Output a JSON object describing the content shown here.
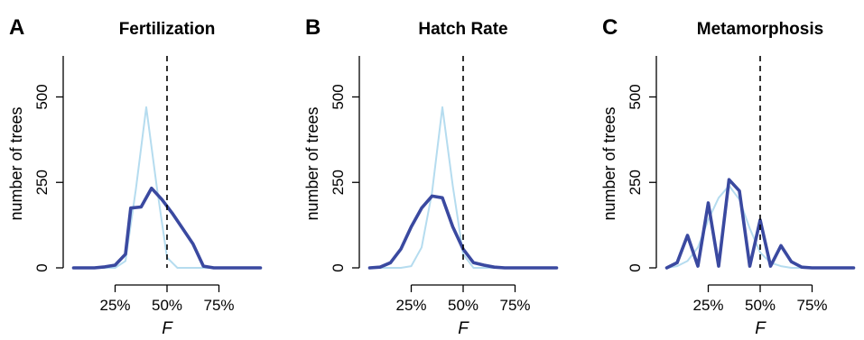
{
  "chart_data": [
    {
      "type": "line",
      "panel": "A",
      "title": "Fertilization",
      "xlabel": "F",
      "ylabel": "number of trees",
      "xlim": [
        0,
        100
      ],
      "ylim": [
        0,
        620
      ],
      "xticks": [
        25,
        50,
        75
      ],
      "xtick_labels": [
        "25%",
        "50%",
        "75%"
      ],
      "yticks": [
        0,
        250,
        500
      ],
      "ytick_labels": [
        "0",
        "250",
        "500"
      ],
      "reference_line_x": 50,
      "grid": false,
      "series": [
        {
          "style": "light",
          "color": "#b5dcef",
          "x": [
            5,
            10,
            15,
            20,
            25,
            30,
            35,
            40,
            45,
            50,
            55,
            60,
            65,
            70,
            75,
            80,
            85,
            90,
            95
          ],
          "y": [
            0,
            0,
            0,
            0,
            0,
            20,
            230,
            470,
            240,
            30,
            0,
            0,
            0,
            0,
            0,
            0,
            0,
            0,
            0
          ]
        },
        {
          "style": "dark",
          "color": "#3a49a0",
          "x": [
            5,
            10,
            15,
            20,
            25,
            30,
            32.5,
            37.5,
            42.5,
            47.5,
            52.5,
            57.5,
            62.5,
            67.5,
            72.5,
            77.5,
            85,
            95
          ],
          "y": [
            0,
            0,
            0,
            3,
            8,
            40,
            175,
            178,
            233,
            200,
            160,
            115,
            70,
            5,
            0,
            0,
            0,
            0
          ]
        }
      ]
    },
    {
      "type": "line",
      "panel": "B",
      "title": "Hatch Rate",
      "xlabel": "F",
      "ylabel": "number of trees",
      "xlim": [
        0,
        100
      ],
      "ylim": [
        0,
        620
      ],
      "xticks": [
        25,
        50,
        75
      ],
      "xtick_labels": [
        "25%",
        "50%",
        "75%"
      ],
      "yticks": [
        0,
        250,
        500
      ],
      "ytick_labels": [
        "0",
        "250",
        "500"
      ],
      "reference_line_x": 50,
      "grid": false,
      "series": [
        {
          "style": "light",
          "color": "#b5dcef",
          "x": [
            5,
            10,
            15,
            20,
            25,
            30,
            35,
            40,
            45,
            50,
            55,
            60,
            65,
            70,
            75,
            80,
            85,
            90,
            95
          ],
          "y": [
            0,
            0,
            0,
            0,
            5,
            60,
            220,
            470,
            240,
            40,
            0,
            0,
            0,
            0,
            0,
            0,
            0,
            0,
            0
          ]
        },
        {
          "style": "dark",
          "color": "#3a49a0",
          "x": [
            5,
            10,
            15,
            20,
            25,
            30,
            35,
            40,
            45,
            50,
            55,
            60,
            65,
            70,
            75,
            80,
            85,
            90,
            95
          ],
          "y": [
            0,
            2,
            15,
            55,
            120,
            175,
            210,
            205,
            120,
            55,
            15,
            8,
            2,
            0,
            0,
            0,
            0,
            0,
            0
          ]
        }
      ]
    },
    {
      "type": "line",
      "panel": "C",
      "title": "Metamorphosis",
      "xlabel": "F",
      "ylabel": "number of trees",
      "xlim": [
        0,
        100
      ],
      "ylim": [
        0,
        620
      ],
      "xticks": [
        25,
        50,
        75
      ],
      "xtick_labels": [
        "25%",
        "50%",
        "75%"
      ],
      "yticks": [
        0,
        250,
        500
      ],
      "ytick_labels": [
        "0",
        "250",
        "500"
      ],
      "reference_line_x": 50,
      "grid": false,
      "series": [
        {
          "style": "light",
          "color": "#b5dcef",
          "x": [
            5,
            10,
            15,
            20,
            25,
            30,
            35,
            40,
            45,
            50,
            55,
            60,
            65,
            70,
            75,
            80,
            85,
            90,
            95
          ],
          "y": [
            0,
            5,
            20,
            60,
            140,
            205,
            240,
            200,
            115,
            45,
            15,
            5,
            0,
            0,
            0,
            0,
            0,
            0,
            0
          ]
        },
        {
          "style": "dark",
          "color": "#3a49a0",
          "x": [
            5,
            10,
            15,
            20,
            25,
            30,
            35,
            40,
            45,
            50,
            55,
            60,
            65,
            70,
            75,
            80,
            85,
            90,
            95
          ],
          "y": [
            0,
            15,
            95,
            5,
            190,
            5,
            258,
            225,
            5,
            140,
            5,
            65,
            18,
            2,
            0,
            0,
            0,
            0,
            0
          ]
        }
      ]
    }
  ]
}
